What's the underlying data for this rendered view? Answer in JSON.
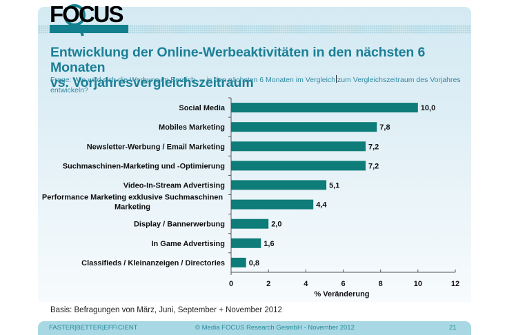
{
  "logo": {
    "text": "FOCUS",
    "icon": "magnifier-logo-icon"
  },
  "title": {
    "line1": "Entwicklung der Online-Werbeaktivitäten in den nächsten 6 Monaten",
    "line2": "vs. Vorjahresvergleichszeitraum"
  },
  "question": {
    "part1": "Frage: Wie wird sich die Werbung im Bereich … in den nächsten 6 Monaten im Vergleich",
    "part2": "zum Vergleichszeitraum des Vorjahres entwickeln?"
  },
  "colors": {
    "bar": "#0e7c78",
    "title": "#1b7f96",
    "footer_bg": "#a7d8e3"
  },
  "chart_data": {
    "type": "bar",
    "orientation": "horizontal",
    "title": "Entwicklung der Online-Werbeaktivitäten in den nächsten 6 Monaten vs. Vorjahresvergleichszeitraum",
    "categories": [
      "Social Media",
      "Mobiles Marketing",
      "Newsletter-Werbung / Email Marketing",
      "Suchmaschinen-Marketing und -Optimierung",
      "Video-In-Stream Advertising",
      "Performance Marketing exklusive Suchmaschinen Marketing",
      "Display / Bannerwerbung",
      "In Game Advertising",
      "Classifieds / Kleinanzeigen / Directories"
    ],
    "category_lines": [
      [
        "Social Media"
      ],
      [
        "Mobiles Marketing"
      ],
      [
        "Newsletter-Werbung / Email Marketing"
      ],
      [
        "Suchmaschinen-Marketing und -Optimierung"
      ],
      [
        "Video-In-Stream Advertising"
      ],
      [
        "Performance Marketing exklusive Suchmaschinen",
        "Marketing"
      ],
      [
        "Display / Bannerwerbung"
      ],
      [
        "In Game Advertising"
      ],
      [
        "Classifieds / Kleinanzeigen / Directories"
      ]
    ],
    "values": [
      10.0,
      7.8,
      7.2,
      7.2,
      5.1,
      4.4,
      2.0,
      1.6,
      0.8
    ],
    "value_labels": [
      "10,0",
      "7,8",
      "7,2",
      "7,2",
      "5,1",
      "4,4",
      "2,0",
      "1,6",
      "0,8"
    ],
    "xlabel": "% Veränderung",
    "ylabel": "",
    "xlim": [
      0,
      12
    ],
    "xticks": [
      0,
      2,
      4,
      6,
      8,
      10,
      12
    ],
    "grid": false,
    "legend": "none"
  },
  "basis": "Basis: Befragungen von März, Juni, September + November 2012",
  "footer": {
    "slogan": "FASTER|BETTER|EFFICIENT",
    "copyright": "© Media FOCUS Research GesmbH - November 2012",
    "page_number": "21"
  }
}
